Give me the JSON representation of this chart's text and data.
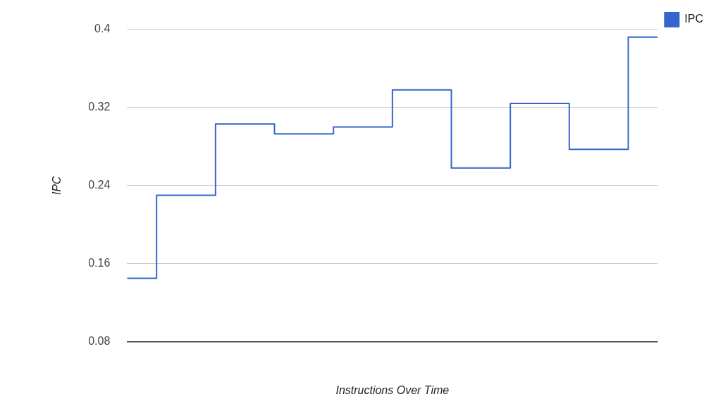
{
  "chart_data": {
    "type": "step",
    "xlabel": "Instructions Over Time",
    "ylabel": "IPC",
    "categories": [
      null,
      null,
      null,
      null,
      null,
      null,
      null,
      null,
      null,
      null
    ],
    "series": [
      {
        "name": "IPC",
        "color": "#3366cc",
        "values": [
          0.145,
          0.23,
          0.303,
          0.293,
          0.3,
          0.338,
          0.258,
          0.324,
          0.277,
          0.392
        ]
      }
    ],
    "ylim": [
      0.08,
      0.4
    ],
    "yticks": [
      0.08,
      0.16,
      0.24,
      0.32,
      0.4
    ],
    "grid": "y",
    "legend": "top right",
    "marker": "none",
    "line_style": "solid"
  }
}
